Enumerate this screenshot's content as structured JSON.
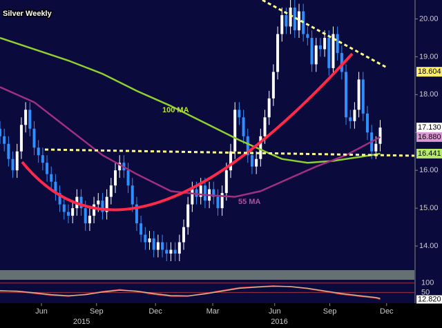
{
  "chart_data": [
    {
      "type": "candlestick",
      "title": "Silver Weekly",
      "x": [
        0,
        1,
        2,
        3,
        4,
        5,
        6,
        7,
        8,
        9,
        10,
        11,
        12,
        13,
        14,
        15,
        16,
        17,
        18,
        19,
        20,
        21,
        22,
        23,
        24,
        25,
        26,
        27,
        28,
        29,
        30,
        31,
        32,
        33,
        34,
        35,
        36,
        37,
        38,
        39,
        40,
        41,
        42,
        43,
        44,
        45,
        46,
        47,
        48,
        49,
        50,
        51,
        52,
        53,
        54,
        55,
        56,
        57,
        58,
        59,
        60,
        61,
        62,
        63,
        64,
        65,
        66,
        67,
        68,
        69,
        70,
        71,
        72,
        73,
        74,
        75,
        76,
        77,
        78,
        79,
        80,
        81,
        82,
        83,
        84,
        85,
        86,
        87,
        88,
        89
      ],
      "open": [
        17.1,
        16.9,
        16.7,
        16.3,
        16.0,
        16.5,
        17.2,
        17.6,
        17.1,
        16.6,
        16.4,
        16.2,
        15.9,
        15.7,
        15.4,
        15.1,
        14.9,
        14.8,
        15.0,
        15.3,
        15.0,
        14.6,
        14.8,
        15.1,
        15.2,
        14.9,
        15.3,
        15.6,
        16.0,
        16.2,
        16.0,
        15.6,
        15.1,
        14.6,
        14.3,
        14.1,
        14.2,
        13.9,
        14.1,
        13.9,
        13.8,
        13.9,
        13.8,
        14.1,
        14.5,
        15.1,
        15.5,
        15.3,
        15.6,
        15.2,
        15.5,
        15.3,
        15.0,
        15.4,
        16.0,
        16.5,
        17.6,
        17.4,
        16.9,
        16.4,
        16.1,
        16.3,
        16.9,
        17.4,
        17.9,
        18.6,
        19.6,
        20.1,
        19.8,
        20.3,
        19.7,
        20.2,
        19.6,
        19.5,
        18.8,
        19.3,
        19.2,
        19.5,
        18.7,
        19.6,
        19.1,
        18.6,
        17.4,
        17.3,
        17.6,
        18.4,
        17.5,
        17.0,
        16.5,
        16.7
      ],
      "high": [
        17.3,
        17.1,
        16.9,
        16.5,
        16.7,
        17.4,
        17.8,
        17.8,
        17.3,
        16.8,
        16.6,
        16.4,
        16.1,
        15.9,
        15.6,
        15.3,
        15.1,
        15.2,
        15.5,
        15.5,
        15.2,
        15.0,
        15.3,
        15.4,
        15.4,
        15.5,
        15.8,
        16.2,
        16.4,
        16.4,
        16.2,
        15.8,
        15.3,
        14.8,
        14.5,
        14.4,
        14.4,
        14.3,
        14.3,
        14.1,
        14.1,
        14.1,
        14.3,
        14.7,
        15.3,
        15.7,
        15.7,
        15.8,
        15.8,
        15.7,
        15.7,
        15.5,
        15.6,
        16.2,
        16.7,
        17.8,
        17.8,
        17.6,
        17.1,
        16.6,
        16.5,
        17.1,
        17.6,
        18.1,
        18.8,
        19.8,
        20.3,
        20.3,
        20.5,
        20.5,
        20.4,
        20.4,
        19.8,
        19.7,
        19.5,
        19.5,
        19.7,
        19.7,
        19.8,
        19.8,
        19.3,
        18.8,
        17.6,
        17.8,
        18.6,
        18.6,
        17.7,
        17.2,
        16.9,
        17.33
      ],
      "low": [
        16.7,
        16.5,
        16.1,
        15.8,
        15.8,
        16.3,
        17.0,
        16.9,
        16.4,
        16.2,
        16.0,
        15.7,
        15.5,
        15.2,
        14.9,
        14.7,
        14.6,
        14.6,
        14.8,
        14.8,
        14.4,
        14.4,
        14.6,
        14.9,
        14.7,
        14.7,
        15.1,
        15.4,
        15.8,
        15.8,
        15.4,
        14.9,
        14.4,
        14.1,
        13.9,
        13.9,
        13.7,
        13.7,
        13.7,
        13.6,
        13.6,
        13.6,
        13.6,
        13.9,
        14.3,
        14.9,
        15.1,
        15.1,
        15.0,
        15.0,
        15.1,
        14.8,
        14.8,
        15.2,
        15.8,
        16.3,
        17.2,
        16.7,
        16.2,
        15.9,
        15.9,
        16.1,
        16.7,
        17.2,
        17.7,
        18.4,
        19.4,
        19.6,
        19.6,
        19.5,
        19.5,
        19.4,
        19.3,
        18.6,
        18.6,
        19.0,
        19.0,
        18.5,
        18.5,
        18.9,
        18.4,
        17.2,
        17.1,
        17.1,
        17.4,
        17.3,
        16.8,
        16.3,
        16.3,
        16.5
      ],
      "close": [
        16.9,
        16.7,
        16.3,
        16.0,
        16.5,
        17.2,
        17.6,
        17.1,
        16.6,
        16.4,
        16.2,
        15.9,
        15.7,
        15.4,
        15.1,
        14.9,
        14.8,
        15.0,
        15.3,
        15.0,
        14.6,
        14.8,
        15.1,
        15.2,
        14.9,
        15.3,
        15.6,
        16.0,
        16.2,
        16.0,
        15.6,
        15.1,
        14.6,
        14.3,
        14.1,
        14.2,
        13.9,
        14.1,
        13.9,
        13.8,
        13.9,
        13.8,
        14.1,
        14.5,
        15.1,
        15.5,
        15.3,
        15.6,
        15.2,
        15.5,
        15.3,
        15.0,
        15.4,
        16.0,
        16.5,
        17.6,
        17.4,
        16.9,
        16.4,
        16.1,
        16.3,
        16.9,
        17.4,
        17.9,
        18.6,
        19.6,
        20.1,
        19.8,
        20.3,
        19.7,
        20.2,
        19.6,
        19.5,
        18.8,
        19.3,
        19.2,
        19.5,
        18.7,
        19.6,
        19.1,
        18.6,
        17.4,
        17.3,
        17.6,
        18.4,
        17.5,
        17.0,
        16.5,
        16.7,
        17.13
      ],
      "up_color": "#ffffff",
      "down_color": "#2f8fff",
      "series": [
        {
          "name": "100 MA",
          "color": "#8fcf2f",
          "x": [
            0,
            8,
            16,
            24,
            32,
            40,
            48,
            56,
            62,
            66,
            72,
            78,
            84,
            89
          ],
          "values": [
            19.5,
            19.2,
            18.9,
            18.55,
            18.1,
            17.7,
            17.25,
            16.8,
            16.5,
            16.3,
            16.2,
            16.25,
            16.35,
            16.44
          ]
        },
        {
          "name": "55 MA",
          "color": "#a0307f",
          "x": [
            0,
            8,
            16,
            24,
            32,
            40,
            48,
            55,
            61,
            68,
            74,
            81,
            89
          ],
          "values": [
            18.2,
            17.8,
            17.1,
            16.4,
            15.9,
            15.45,
            15.35,
            15.3,
            15.45,
            15.8,
            16.1,
            16.4,
            16.88
          ]
        }
      ],
      "last_values": [
        {
          "value": 18.604,
          "label": "18.604",
          "color": "#ffee66"
        },
        {
          "value": 17.13,
          "label": "17.130",
          "color": "#ffffff"
        },
        {
          "value": 16.88,
          "label": "16.880",
          "color": "#d89ad0"
        },
        {
          "value": 16.441,
          "label": "16.441",
          "color": "#b8e86a"
        }
      ],
      "xlim": [
        0,
        97
      ],
      "ylim": [
        13.4,
        20.5
      ],
      "yticks": [
        {
          "value": 14,
          "label": "14.00"
        },
        {
          "value": 15,
          "label": "15.00"
        },
        {
          "value": 16,
          "label": "16.00"
        },
        {
          "value": 17,
          "label": "17.00"
        },
        {
          "value": 18,
          "label": "18.00"
        },
        {
          "value": 19,
          "label": "19.00"
        },
        {
          "value": 20,
          "label": "20.00"
        }
      ],
      "xticks": [
        {
          "value": 9.7,
          "label": "Jun"
        },
        {
          "value": 22.6,
          "label": "Sep"
        },
        {
          "value": 36.4,
          "label": "Dec"
        },
        {
          "value": 49.8,
          "label": "Mar"
        },
        {
          "value": 64.3,
          "label": "Jun"
        },
        {
          "value": 77.2,
          "label": "Sep"
        },
        {
          "value": 90.5,
          "label": "Dec"
        }
      ],
      "xticks_years": [
        {
          "value": 19.1,
          "label": "2015"
        },
        {
          "value": 65.4,
          "label": "2016"
        }
      ]
    },
    {
      "type": "line",
      "x": [
        0,
        4,
        8,
        12,
        16,
        20,
        24,
        28,
        32,
        36,
        40,
        44,
        48,
        52,
        56,
        60,
        64,
        68,
        72,
        76,
        80,
        84,
        88,
        89
      ],
      "series": [
        {
          "color": "#e8323c",
          "values": [
            60,
            55,
            45,
            35,
            30,
            40,
            55,
            65,
            55,
            40,
            30,
            30,
            45,
            60,
            75,
            80,
            85,
            80,
            70,
            55,
            40,
            30,
            20,
            13
          ]
        },
        {
          "color": "#d2b48c",
          "values": [
            58,
            57,
            48,
            38,
            32,
            38,
            52,
            62,
            57,
            44,
            33,
            31,
            42,
            57,
            72,
            78,
            83,
            81,
            72,
            58,
            44,
            33,
            23,
            18
          ]
        }
      ],
      "xlim": [
        0,
        97
      ],
      "ylim": [
        0,
        110
      ],
      "yticks": [
        100,
        50
      ],
      "last_values": [
        {
          "value": 12.82,
          "label": "12.820",
          "color": "#ffffff"
        }
      ]
    }
  ]
}
